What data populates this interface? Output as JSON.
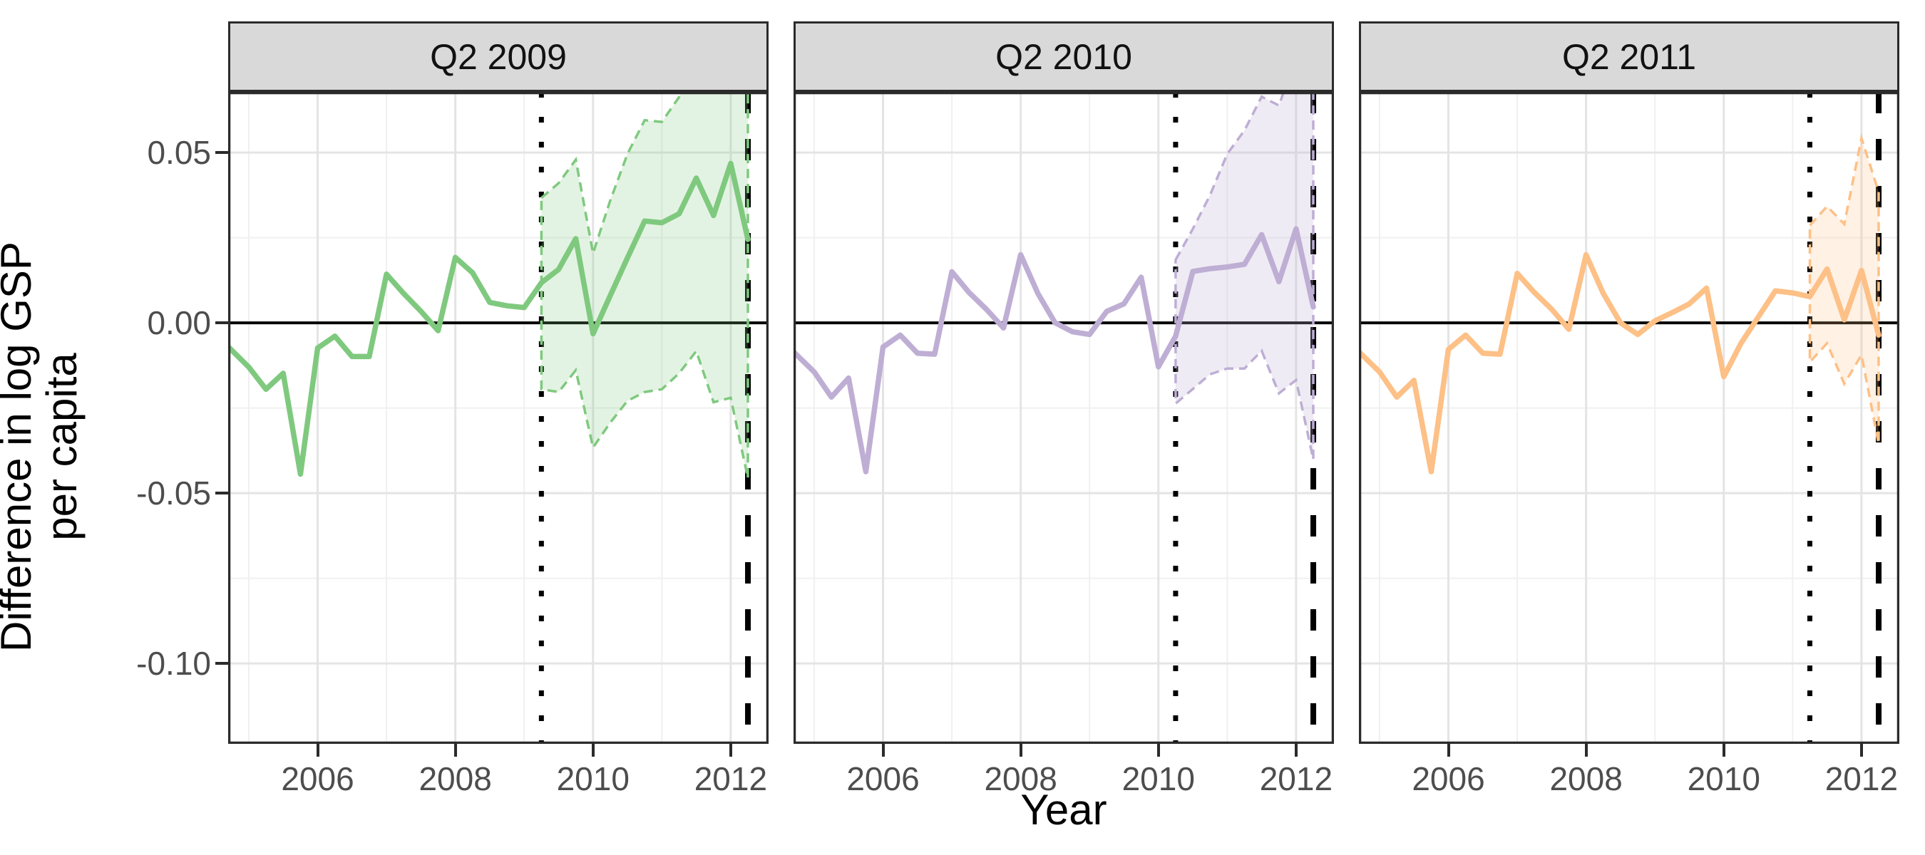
{
  "figure": {
    "y_axis_title_lines": [
      "Difference in log GSP",
      "per capita"
    ],
    "x_axis_title": "Year",
    "facet_labels": [
      "Q2 2009",
      "Q2 2010",
      "Q2 2011"
    ]
  },
  "chart_data": {
    "type": "line",
    "faceted": true,
    "title": "",
    "xlabel": "Year",
    "ylabel": "Difference in log GSP per capita",
    "x_range": [
      2004.7,
      2012.55
    ],
    "y_range": [
      -0.1236,
      0.0678
    ],
    "x_ticks": {
      "values": [
        2006,
        2008,
        2010,
        2012
      ],
      "labels": [
        "2006",
        "2008",
        "2010",
        "2012"
      ]
    },
    "y_ticks": {
      "values": [
        0.05,
        0.0,
        -0.05,
        -0.1
      ],
      "labels": [
        "0.05",
        "0.00",
        "-0.05",
        "-0.10"
      ]
    },
    "x_minor_gridlines": [
      2005,
      2007,
      2009,
      2011
    ],
    "y_minor_gridlines": [
      0.025,
      -0.025,
      -0.075
    ],
    "zero_line_y": 0,
    "grid": true,
    "legend": "none",
    "x_quarters": [
      2004.7,
      2005.0,
      2005.25,
      2005.5,
      2005.75,
      2006.0,
      2006.25,
      2006.5,
      2006.75,
      2007.0,
      2007.25,
      2007.5,
      2007.75,
      2008.0,
      2008.25,
      2008.5,
      2008.75,
      2009.0,
      2009.25,
      2009.5,
      2009.75,
      2010.0,
      2010.25,
      2010.5,
      2010.75,
      2011.0,
      2011.25,
      2011.5,
      2011.75,
      2012.0,
      2012.25
    ],
    "panels": [
      {
        "facet_label": "Q2 2009",
        "line_color": "#7FC97F",
        "fill_color": "#7FC97F",
        "fill_opacity": 0.22,
        "placebo_vline_year": 2009.25,
        "treatment_vline_year": 2012.25,
        "line_values": [
          -0.007,
          -0.013,
          -0.0195,
          -0.0148,
          -0.0444,
          -0.0074,
          -0.0039,
          -0.0099,
          -0.0099,
          0.0143,
          0.0086,
          0.0034,
          -0.0023,
          0.0192,
          0.0147,
          0.006,
          0.005,
          0.0045,
          0.0118,
          0.0157,
          0.0247,
          -0.0032,
          0.008,
          0.0191,
          0.0299,
          0.0294,
          0.032,
          0.0425,
          0.0315,
          0.0468,
          0.0245
        ],
        "ribbon": {
          "x": [
            2009.25,
            2009.5,
            2009.75,
            2010.0,
            2010.25,
            2010.5,
            2010.75,
            2011.0,
            2011.25,
            2011.5,
            2011.75,
            2012.0,
            2012.25
          ],
          "upper": [
            0.0367,
            0.041,
            0.0479,
            0.0204,
            0.0359,
            0.0496,
            0.0595,
            0.059,
            0.0663,
            0.076,
            0.081,
            0.086,
            0.08
          ],
          "lower": [
            -0.0195,
            -0.0203,
            -0.0139,
            -0.0366,
            -0.0293,
            -0.0229,
            -0.0203,
            -0.0195,
            -0.0148,
            -0.0083,
            -0.0233,
            -0.022,
            -0.0456
          ]
        }
      },
      {
        "facet_label": "Q2 2010",
        "line_color": "#BEAED4",
        "fill_color": "#BEAED4",
        "fill_opacity": 0.25,
        "placebo_vline_year": 2010.25,
        "treatment_vline_year": 2012.25,
        "line_values": [
          -0.0085,
          -0.0144,
          -0.0218,
          -0.0162,
          -0.0437,
          -0.0071,
          -0.0036,
          -0.0089,
          -0.0092,
          0.015,
          0.0089,
          0.004,
          -0.0015,
          0.02,
          0.0086,
          0.0,
          -0.0026,
          -0.0034,
          0.0034,
          0.0056,
          0.0134,
          -0.0129,
          -0.0039,
          0.0151,
          0.0159,
          0.0164,
          0.0172,
          0.0259,
          0.0121,
          0.0276,
          0.0047
        ],
        "ribbon": {
          "x": [
            2010.25,
            2010.5,
            2010.75,
            2011.0,
            2011.25,
            2011.5,
            2011.75,
            2012.0,
            2012.25
          ],
          "upper": [
            0.0185,
            0.0276,
            0.0375,
            0.0496,
            0.0565,
            0.0664,
            0.0638,
            0.078,
            0.08
          ],
          "lower": [
            -0.0237,
            -0.0194,
            -0.0151,
            -0.0134,
            -0.0134,
            -0.0082,
            -0.0207,
            -0.0168,
            -0.0401
          ]
        }
      },
      {
        "facet_label": "Q2 2011",
        "line_color": "#FDC086",
        "fill_color": "#FDC086",
        "fill_opacity": 0.22,
        "placebo_vline_year": 2011.25,
        "treatment_vline_year": 2012.25,
        "line_values": [
          -0.0085,
          -0.0144,
          -0.0218,
          -0.0169,
          -0.0437,
          -0.0078,
          -0.0036,
          -0.0089,
          -0.0092,
          0.0145,
          0.0089,
          0.004,
          -0.0019,
          0.02,
          0.0086,
          0.0,
          -0.0034,
          0.0006,
          0.003,
          0.0056,
          0.0102,
          -0.0158,
          -0.006,
          0.0017,
          0.0094,
          0.0088,
          0.0077,
          0.0158,
          0.0009,
          0.0154,
          -0.0036
        ],
        "ribbon": {
          "x": [
            2011.25,
            2011.5,
            2011.75,
            2012.0,
            2012.25
          ],
          "upper": [
            0.0286,
            0.0342,
            0.029,
            0.0542,
            0.0384
          ],
          "lower": [
            -0.0115,
            -0.006,
            -0.0179,
            -0.0094,
            -0.0355
          ]
        }
      }
    ]
  }
}
